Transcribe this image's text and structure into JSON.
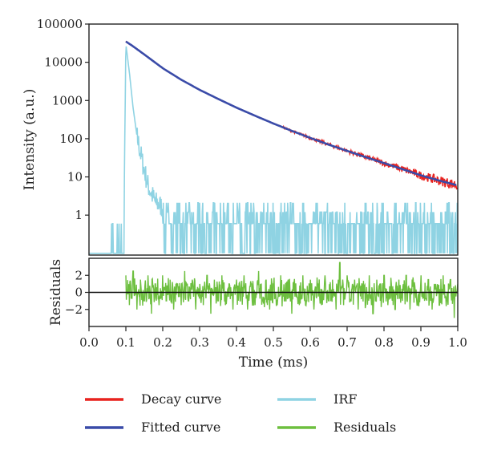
{
  "chart_data": [
    {
      "panel": "main",
      "type": "line",
      "ylabel": "Intensity (a.u.)",
      "yscale": "log",
      "xlim": [
        0.0,
        1.0
      ],
      "ylim": [
        0.09,
        100000
      ],
      "yticks": [
        "100000",
        "10000",
        "1000",
        "100",
        "10",
        "1"
      ],
      "ytick_values": [
        100000,
        10000,
        1000,
        100,
        10,
        1
      ],
      "series": [
        {
          "name": "Decay curve",
          "color": "#e8231f",
          "x": [
            0.1,
            0.12,
            0.15,
            0.2,
            0.25,
            0.3,
            0.35,
            0.4,
            0.45,
            0.5,
            0.55,
            0.6,
            0.65,
            0.7,
            0.75,
            0.8,
            0.85,
            0.9,
            0.95,
            1.0
          ],
          "y": [
            35000,
            26000,
            16000,
            7000,
            3500,
            1900,
            1100,
            650,
            400,
            250,
            160,
            105,
            70,
            48,
            33,
            23,
            16,
            11,
            8,
            6
          ]
        },
        {
          "name": "Fitted curve",
          "color": "#3a4ba8",
          "x": [
            0.1,
            0.12,
            0.15,
            0.2,
            0.25,
            0.3,
            0.35,
            0.4,
            0.45,
            0.5,
            0.55,
            0.6,
            0.65,
            0.7,
            0.75,
            0.8,
            0.85,
            0.9,
            0.95,
            1.0
          ],
          "y": [
            35000,
            26000,
            16000,
            7000,
            3500,
            1900,
            1100,
            650,
            400,
            250,
            160,
            105,
            70,
            48,
            33,
            23,
            16,
            11,
            8,
            6
          ]
        },
        {
          "name": "IRF",
          "color": "#8fd3e3",
          "x": [
            0.0,
            0.06,
            0.07,
            0.09,
            0.095,
            0.1,
            0.11,
            0.12,
            0.13,
            0.14,
            0.15,
            0.16,
            0.17,
            0.18,
            0.2,
            0.25,
            1.0
          ],
          "y": [
            0.1,
            0.1,
            0.6,
            0.6,
            1.5,
            30000,
            5000,
            600,
            120,
            40,
            15,
            6,
            3.5,
            2.2,
            1.6,
            1.2,
            1.0
          ]
        }
      ]
    },
    {
      "panel": "residuals",
      "type": "line",
      "xlabel": "Time (ms)",
      "ylabel": "Residuals",
      "xlim": [
        0.0,
        1.0
      ],
      "ylim": [
        -4,
        4
      ],
      "xticks": [
        "0.0",
        "0.1",
        "0.2",
        "0.3",
        "0.4",
        "0.5",
        "0.6",
        "0.7",
        "0.8",
        "0.9",
        "1.0"
      ],
      "xtick_values": [
        0.0,
        0.1,
        0.2,
        0.3,
        0.4,
        0.5,
        0.6,
        0.7,
        0.8,
        0.9,
        1.0
      ],
      "yticks": [
        "2",
        "0",
        "−2"
      ],
      "ytick_values": [
        2,
        0,
        -2
      ],
      "series": [
        {
          "name": "Residuals",
          "color": "#6dbf3f",
          "x": [
            0.1,
            0.11,
            0.12,
            0.13,
            0.14,
            0.15,
            0.16,
            0.17,
            0.18,
            0.19,
            0.2,
            0.21,
            0.22,
            0.23,
            0.24,
            0.25,
            0.26,
            0.27,
            0.28,
            0.29,
            0.3,
            0.31,
            0.32,
            0.33,
            0.34,
            0.35,
            0.36,
            0.37,
            0.38,
            0.39,
            0.4,
            0.41,
            0.42,
            0.43,
            0.44,
            0.45,
            0.46,
            0.47,
            0.48,
            0.49,
            0.5,
            0.51,
            0.52,
            0.53,
            0.54,
            0.55,
            0.56,
            0.57,
            0.58,
            0.59,
            0.6,
            0.61,
            0.62,
            0.63,
            0.64,
            0.65,
            0.66,
            0.67,
            0.68,
            0.69,
            0.7,
            0.71,
            0.72,
            0.73,
            0.74,
            0.75,
            0.76,
            0.77,
            0.78,
            0.79,
            0.8,
            0.81,
            0.82,
            0.83,
            0.84,
            0.85,
            0.86,
            0.87,
            0.88,
            0.89,
            0.9,
            0.91,
            0.92,
            0.93,
            0.94,
            0.95,
            0.96,
            0.97,
            0.98,
            0.99,
            1.0
          ],
          "y": [
            2.0,
            -1.5,
            2.5,
            -2.0,
            1.5,
            -1.0,
            2.0,
            -2.5,
            1.0,
            -1.5,
            2.0,
            -1.0,
            1.5,
            -2.0,
            1.0,
            -1.5,
            2.5,
            -1.0,
            1.5,
            -2.0,
            1.0,
            -1.5,
            2.0,
            -2.5,
            1.5,
            -1.0,
            2.0,
            -1.5,
            1.0,
            -2.0,
            1.5,
            -1.0,
            2.0,
            -2.0,
            1.0,
            -1.5,
            2.5,
            -1.0,
            1.5,
            -2.0,
            1.0,
            -1.5,
            2.0,
            -1.0,
            1.5,
            -2.5,
            1.0,
            -1.5,
            2.0,
            -1.0,
            1.5,
            -2.0,
            1.0,
            -1.5,
            2.0,
            -1.0,
            1.5,
            -2.0,
            3.5,
            -1.5,
            2.0,
            -1.0,
            1.5,
            -2.0,
            1.0,
            -1.5,
            2.0,
            -2.5,
            1.5,
            -1.0,
            2.0,
            -1.5,
            1.0,
            -2.0,
            1.5,
            -1.0,
            2.0,
            -2.0,
            1.0,
            -1.5,
            2.0,
            -1.0,
            1.5,
            -2.0,
            1.0,
            -1.5,
            2.0,
            -1.0,
            1.5,
            -3.0,
            1.0
          ]
        }
      ]
    }
  ],
  "legend": {
    "placement": "bottom",
    "items": [
      {
        "label": "Decay curve",
        "color": "#e8231f"
      },
      {
        "label": "IRF",
        "color": "#8fd3e3"
      },
      {
        "label": "Fitted curve",
        "color": "#3a4ba8"
      },
      {
        "label": "Residuals",
        "color": "#6dbf3f"
      }
    ]
  }
}
